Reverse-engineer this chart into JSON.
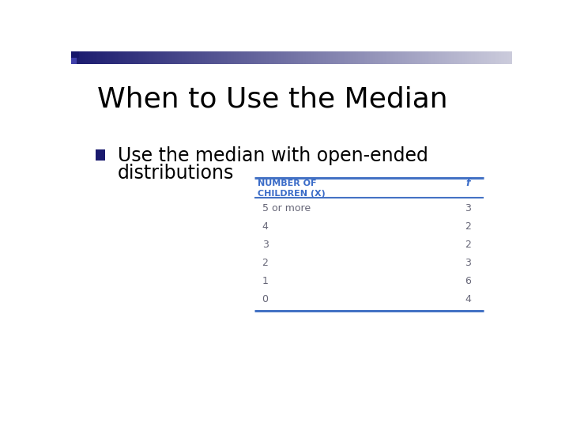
{
  "title": "When to Use the Median",
  "bullet_text_line1": "Use the median with open-ended",
  "bullet_text_line2": "distributions",
  "table_col1_header": "NUMBER OF\nCHILDREN (X)",
  "table_col2_header": "f",
  "table_rows": [
    [
      "5 or more",
      "3"
    ],
    [
      "4",
      "2"
    ],
    [
      "3",
      "2"
    ],
    [
      "2",
      "3"
    ],
    [
      "1",
      "6"
    ],
    [
      "0",
      "4"
    ]
  ],
  "title_color": "#000000",
  "title_fontsize": 26,
  "bullet_fontsize": 17,
  "bullet_color": "#000000",
  "table_header_color": "#3B6CC8",
  "table_text_color": "#666677",
  "table_line_color": "#4472C4",
  "background_color": "#ffffff",
  "header_bar_left_color": "#1a1a6e",
  "header_bar_right_color": "#c8c8dc",
  "bullet_square_color": "#1a1a6e"
}
